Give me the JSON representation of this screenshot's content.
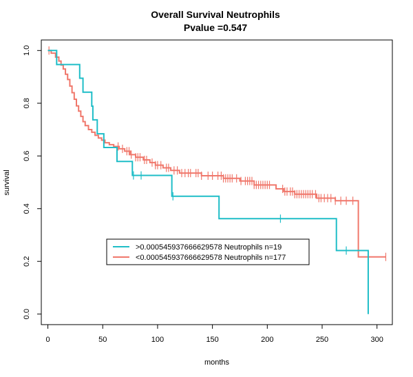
{
  "chart_data": {
    "type": "line",
    "title": "Overall Survival Neutrophils",
    "subtitle": "Pvalue =0.547",
    "xlabel": "months",
    "ylabel": "survival",
    "xlim": [
      -6,
      314
    ],
    "ylim": [
      -0.04,
      1.04
    ],
    "x_ticks": [
      0,
      50,
      100,
      150,
      200,
      250,
      300
    ],
    "y_ticks": [
      0.0,
      0.2,
      0.4,
      0.6,
      0.8,
      1.0
    ],
    "x_tick_labels": [
      "0",
      "50",
      "100",
      "150",
      "200",
      "250",
      "300"
    ],
    "y_tick_labels": [
      "0.0",
      "0.2",
      "0.4",
      "0.6",
      "0.8",
      "1.0"
    ],
    "grid": false,
    "legend_position": "center-left",
    "series": [
      {
        "name": ">0.000545937666629578 Neutrophils n=19",
        "color": "#1ebdc7",
        "steps": [
          [
            0,
            1.0
          ],
          [
            8,
            0.947
          ],
          [
            29,
            0.895
          ],
          [
            32,
            0.842
          ],
          [
            40,
            0.789
          ],
          [
            41,
            0.737
          ],
          [
            45,
            0.684
          ],
          [
            51,
            0.632
          ],
          [
            63,
            0.579
          ],
          [
            77,
            0.526
          ],
          [
            113,
            0.447
          ],
          [
            156,
            0.362
          ],
          [
            263,
            0.241
          ],
          [
            292,
            0.0
          ]
        ],
        "censor_times": [
          78,
          85,
          114,
          212,
          272
        ]
      },
      {
        "name": "<0.000545937666629578 Neutrophils n=177",
        "color": "#f0776b",
        "steps": [
          [
            0,
            1.0
          ],
          [
            3,
            0.99
          ],
          [
            7,
            0.975
          ],
          [
            10,
            0.96
          ],
          [
            12,
            0.945
          ],
          [
            14,
            0.93
          ],
          [
            16,
            0.91
          ],
          [
            18,
            0.89
          ],
          [
            20,
            0.865
          ],
          [
            22,
            0.84
          ],
          [
            24,
            0.815
          ],
          [
            26,
            0.79
          ],
          [
            28,
            0.77
          ],
          [
            30,
            0.75
          ],
          [
            32,
            0.73
          ],
          [
            34,
            0.715
          ],
          [
            37,
            0.7
          ],
          [
            40,
            0.69
          ],
          [
            43,
            0.678
          ],
          [
            46,
            0.668
          ],
          [
            49,
            0.66
          ],
          [
            52,
            0.65
          ],
          [
            56,
            0.643
          ],
          [
            60,
            0.636
          ],
          [
            65,
            0.627
          ],
          [
            70,
            0.618
          ],
          [
            75,
            0.605
          ],
          [
            80,
            0.595
          ],
          [
            87,
            0.585
          ],
          [
            93,
            0.575
          ],
          [
            98,
            0.565
          ],
          [
            105,
            0.555
          ],
          [
            112,
            0.545
          ],
          [
            120,
            0.535
          ],
          [
            140,
            0.525
          ],
          [
            160,
            0.515
          ],
          [
            175,
            0.505
          ],
          [
            188,
            0.49
          ],
          [
            208,
            0.475
          ],
          [
            215,
            0.465
          ],
          [
            225,
            0.455
          ],
          [
            245,
            0.44
          ],
          [
            262,
            0.43
          ],
          [
            283,
            0.217
          ]
        ],
        "censor_times": [
          1,
          64,
          68,
          72,
          74,
          76,
          80,
          82,
          84,
          88,
          90,
          95,
          98,
          100,
          103,
          108,
          110,
          115,
          118,
          122,
          125,
          128,
          130,
          135,
          137,
          140,
          146,
          150,
          155,
          158,
          160,
          162,
          164,
          166,
          168,
          172,
          176,
          180,
          182,
          184,
          186,
          188,
          190,
          192,
          194,
          196,
          198,
          200,
          202,
          214,
          216,
          218,
          221,
          223,
          225,
          227,
          229,
          231,
          233,
          235,
          237,
          239,
          241,
          244,
          247,
          249,
          252,
          255,
          258,
          262,
          267,
          272,
          278,
          308
        ]
      }
    ]
  }
}
